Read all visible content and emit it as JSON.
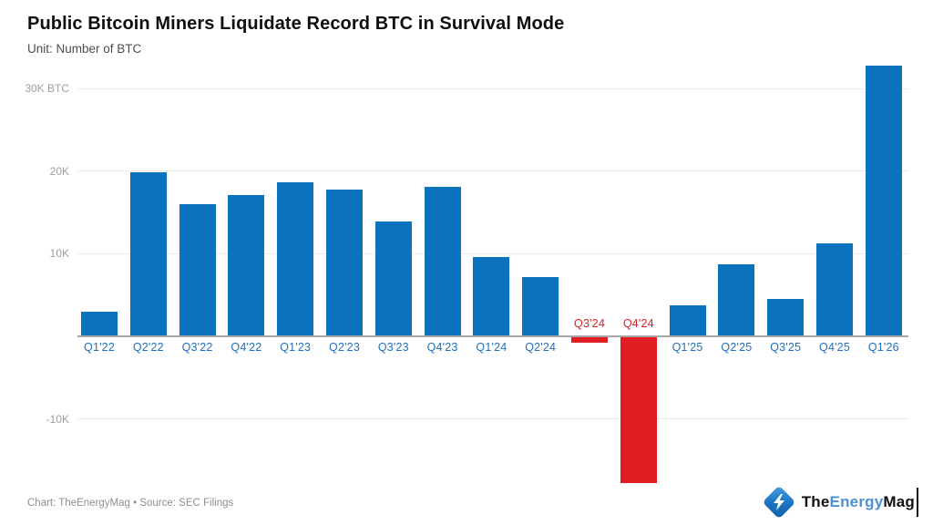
{
  "header": {
    "subtitle": "Unit: Number of BTC"
  },
  "chart_data": {
    "type": "bar",
    "title": "Public Bitcoin Miners Liquidate Record BTC in Survival Mode",
    "subtitle": "Unit: Number of BTC",
    "categories": [
      "Q1'22",
      "Q2'22",
      "Q3'22",
      "Q4'22",
      "Q1'23",
      "Q2'23",
      "Q3'23",
      "Q4'23",
      "Q1'24",
      "Q2'24",
      "Q3'24",
      "Q4'24",
      "Q1'25",
      "Q2'25",
      "Q3'25",
      "Q4'25",
      "Q1'26"
    ],
    "values": [
      3000,
      19900,
      16000,
      17100,
      18600,
      17800,
      13900,
      18100,
      9600,
      7200,
      -800,
      -17800,
      3800,
      8700,
      4500,
      11200,
      32800
    ],
    "xlabel": "",
    "ylabel": "Number of BTC",
    "ylim": [
      -20000,
      33000
    ],
    "yticks": [
      {
        "value": 30000,
        "label": "30K BTC"
      },
      {
        "value": 20000,
        "label": "20K"
      },
      {
        "value": 10000,
        "label": "10K"
      },
      {
        "value": -10000,
        "label": "-10K"
      }
    ],
    "grid": true,
    "legend": false,
    "positive_color": "#0b72bd",
    "negative_color": "#e01d23",
    "x_label_color": "#1f6fc0"
  },
  "footer": {
    "credit": "Chart: TheEnergyMag • Source: SEC Filings"
  },
  "logo": {
    "icon": "lightning-bolt-icon",
    "the": "The",
    "energy": "Energy",
    "mag": "Mag"
  }
}
